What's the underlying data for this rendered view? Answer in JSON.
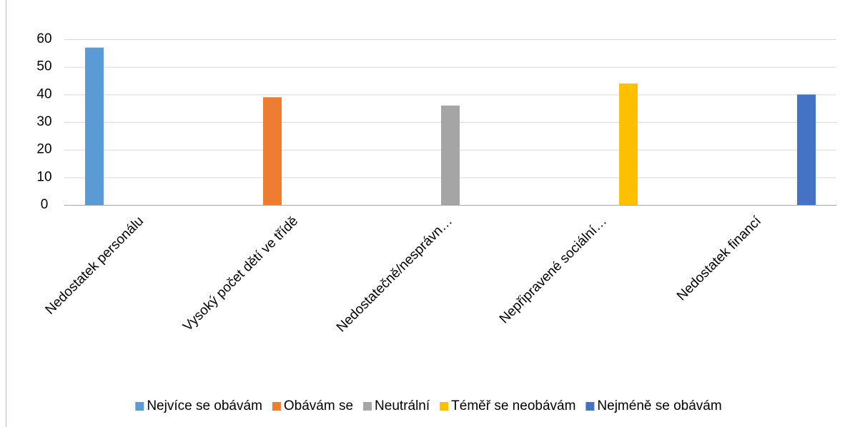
{
  "chart_data": {
    "type": "bar",
    "categories": [
      "Nedostatek personálu",
      "Vysoký počet dětí ve třídě",
      "Nedostatečně/nesprávn…",
      "Nepřipravené sociální…",
      "Nedostatek financí"
    ],
    "series": [
      {
        "name": "Nejvíce se obávám",
        "color": "#5b9bd5",
        "values": [
          57,
          null,
          null,
          null,
          null
        ]
      },
      {
        "name": "Obávám se",
        "color": "#ed7d31",
        "values": [
          null,
          39,
          null,
          null,
          null
        ]
      },
      {
        "name": "Neutrální",
        "color": "#a5a5a5",
        "values": [
          null,
          null,
          36,
          null,
          null
        ]
      },
      {
        "name": "Téměř se neobávám",
        "color": "#ffc000",
        "values": [
          null,
          null,
          null,
          44,
          null
        ]
      },
      {
        "name": "Nejméně se obávám",
        "color": "#4472c4",
        "values": [
          null,
          null,
          null,
          null,
          40
        ]
      }
    ],
    "ylim": [
      0,
      60
    ],
    "yticks": [
      0,
      10,
      20,
      30,
      40,
      50,
      60
    ],
    "grid": true,
    "legend": "bottom"
  }
}
